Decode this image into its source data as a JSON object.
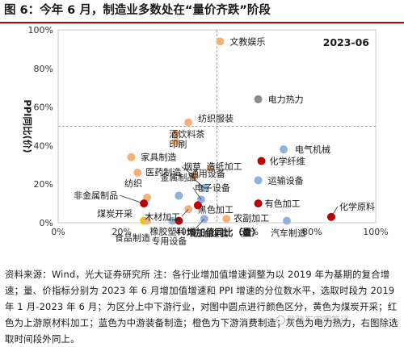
{
  "figure_title": "图 6：今年 6 月，制造业多数处在“量价齐跌”阶段",
  "footnote": "资料来源：Wind，光大证券研究所 注：各行业增加值增速调整为以 2019 年为基期的复合增速；量、价指标分别为 2023 年 6 月增加值增速和 PPI 增速的分位数水平，选取时段为 2019 年 1 月-2023 年 6 月；为区分上中下游行业，对图中圆点进行颜色区分，黄色为煤炭开采；红色为上游原材料加工；蓝色为中游装备制造；橙色为下游消费制造；灰色为电力热力，右图除选取时间段外同上。",
  "watermark": "卧隆东宏观笔记",
  "colors": {
    "orange": "#f2b27a",
    "red": "#c00000",
    "blue": "#8fb3de",
    "gray": "#8c8c8c",
    "yellow": "#f5c400",
    "title_line": "#c00000",
    "ref_line": "#a6a6a6"
  },
  "chart_data": {
    "type": "scatter",
    "title": "2023-06",
    "xlabel": "增加值同比（量）",
    "ylabel": "PPI同比(价)",
    "xlim": [
      0,
      100
    ],
    "ylim": [
      0,
      100
    ],
    "x_ticks": [
      "0%",
      "20%",
      "40%",
      "60%",
      "80%",
      "100%"
    ],
    "y_ticks": [
      "0%",
      "20%",
      "40%",
      "60%",
      "80%",
      "100%"
    ],
    "reference_lines": {
      "x": 50,
      "y": 50
    },
    "grid": false,
    "legend": "none",
    "points": [
      {
        "label": "文教娱乐",
        "x": 51,
        "y": 94,
        "group": "orange"
      },
      {
        "label": "电力热力",
        "x": 63,
        "y": 64,
        "group": "gray"
      },
      {
        "label": "纺织服装",
        "x": 41,
        "y": 52,
        "group": "orange"
      },
      {
        "label": "酒饮料茶",
        "x": 37,
        "y": 46,
        "group": "orange"
      },
      {
        "label": "印刷",
        "x": 37,
        "y": 42,
        "group": "orange"
      },
      {
        "label": "电气机械",
        "x": 71,
        "y": 38,
        "group": "blue"
      },
      {
        "label": "家具制造",
        "x": 23,
        "y": 34,
        "group": "orange"
      },
      {
        "label": "化学纤维",
        "x": 64,
        "y": 32,
        "group": "red"
      },
      {
        "label": "医药制造",
        "x": 25,
        "y": 26,
        "group": "orange"
      },
      {
        "label": "造纸加工",
        "x": 48,
        "y": 28,
        "group": "orange"
      },
      {
        "label": "烟草",
        "x": 43,
        "y": 24,
        "group": "orange"
      },
      {
        "label": "运输设备",
        "x": 63,
        "y": 22,
        "group": "blue"
      },
      {
        "label": "通用设备",
        "x": 46,
        "y": 18,
        "group": "blue"
      },
      {
        "label": "金属制品",
        "x": 38,
        "y": 14,
        "group": "blue"
      },
      {
        "label": "纺织",
        "x": 28,
        "y": 13,
        "group": "orange"
      },
      {
        "label": "电子设备",
        "x": 45,
        "y": 12,
        "group": "blue"
      },
      {
        "label": "非金属制品",
        "x": 27,
        "y": 10,
        "group": "red"
      },
      {
        "label": "有色加工",
        "x": 63,
        "y": 10,
        "group": "red"
      },
      {
        "label": "黑色加工",
        "x": 44,
        "y": 9,
        "group": "red"
      },
      {
        "label": "木材加工",
        "x": 41,
        "y": 7,
        "group": "orange"
      },
      {
        "label": "化学原料",
        "x": 86,
        "y": 3,
        "group": "red"
      },
      {
        "label": "煤炭开采",
        "x": 27,
        "y": 1,
        "group": "yellow"
      },
      {
        "label": "食品制造",
        "x": 28,
        "y": 1,
        "group": "orange"
      },
      {
        "label": "橡胶塑料",
        "x": 36,
        "y": 1,
        "group": "blue"
      },
      {
        "label": "专用设备",
        "x": 38,
        "y": 1,
        "group": "red"
      },
      {
        "label": "石油煤炭",
        "x": 46,
        "y": 2,
        "group": "blue"
      },
      {
        "label": "农副加工",
        "x": 53,
        "y": 2,
        "group": "orange"
      },
      {
        "label": "汽车制造",
        "x": 72,
        "y": 1,
        "group": "blue"
      }
    ]
  }
}
